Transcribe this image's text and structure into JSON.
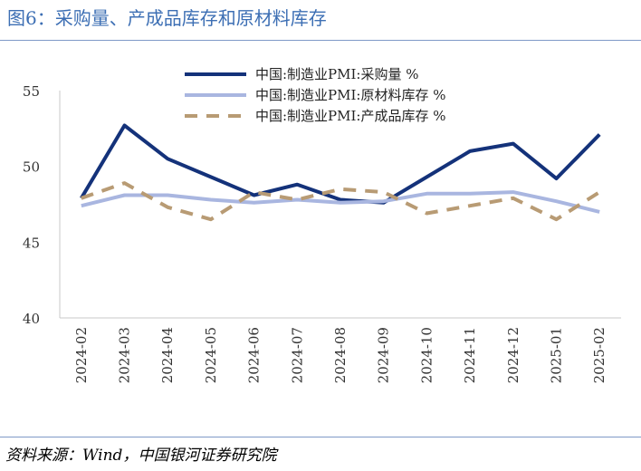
{
  "title": "图6：采购量、产成品库存和原材料库存",
  "source": "资料来源：Wind，中国银河证券研究院",
  "chart_data": {
    "type": "line",
    "categories": [
      "2024-02",
      "2024-03",
      "2024-04",
      "2024-05",
      "2024-06",
      "2024-07",
      "2024-08",
      "2024-09",
      "2024-10",
      "2024-11",
      "2024-12",
      "2025-01",
      "2025-02"
    ],
    "ylim": [
      40,
      55
    ],
    "yticks": [
      40,
      45,
      50,
      55
    ],
    "grid": false,
    "legend_position": "top",
    "series": [
      {
        "name": "中国:制造业PMI:采购量 %",
        "color": "#14327a",
        "dash": "solid",
        "values": [
          47.9,
          52.7,
          50.5,
          49.3,
          48.1,
          48.8,
          47.8,
          47.6,
          49.3,
          51.0,
          51.5,
          49.2,
          52.1
        ]
      },
      {
        "name": "中国:制造业PMI:原材料库存 %",
        "color": "#a9b6e0",
        "dash": "solid",
        "values": [
          47.4,
          48.1,
          48.1,
          47.8,
          47.6,
          47.8,
          47.6,
          47.7,
          48.2,
          48.2,
          48.3,
          47.7,
          47.0
        ]
      },
      {
        "name": "中国:制造业PMI:产成品库存 %",
        "color": "#b89b74",
        "dash": "dashed",
        "values": [
          47.9,
          48.9,
          47.3,
          46.5,
          48.3,
          47.8,
          48.5,
          48.3,
          46.9,
          47.4,
          47.9,
          46.5,
          48.3
        ]
      }
    ]
  }
}
